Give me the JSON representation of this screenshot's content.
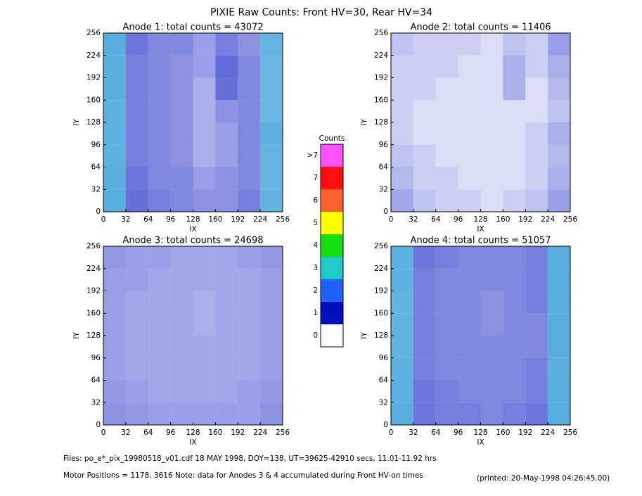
{
  "title": "PIXIE Raw Counts:  Front HV=30, Rear HV=34",
  "colorbar": {
    "title": "Counts",
    "levels": [
      "0",
      "1",
      "2",
      "3",
      "4",
      "5",
      "6",
      "7",
      ">7"
    ],
    "colors": [
      "#ffffff",
      "#0010c0",
      "#2060ff",
      "#20c8c8",
      "#10e010",
      "#ffff00",
      "#ff6030",
      "#ff1010",
      "#ff50ff"
    ]
  },
  "footer": [
    "Files: po_e*_pix_19980518_v01.cdf    18 MAY 1998, DOY=138, UT=39625-42910 secs, 11.01-11.92 hrs",
    "Motor Positions = 1178, 3616    Note: data for Anodes 3 & 4 accumulated during Front HV-on times",
    "(printed: 20-May-1998 04:26:45.00)"
  ],
  "chart_data": [
    {
      "type": "heatmap",
      "title": "Anode 1: total counts = 43072",
      "xlabel": "IX",
      "ylabel": "IY",
      "xlim": [
        0,
        256
      ],
      "ylim": [
        0,
        256
      ],
      "xticks": [
        0,
        32,
        64,
        96,
        128,
        160,
        192,
        224,
        256
      ],
      "yticks": [
        0,
        32,
        64,
        96,
        128,
        160,
        192,
        224,
        256
      ],
      "values": [
        [
          1.6,
          0.8,
          0.6,
          0.6,
          0.4,
          0.7,
          0.5,
          1.2
        ],
        [
          1.5,
          0.7,
          0.6,
          0.5,
          0.4,
          1.0,
          0.6,
          1.1
        ],
        [
          1.5,
          0.7,
          0.6,
          0.5,
          0.3,
          0.9,
          0.6,
          1.1
        ],
        [
          1.4,
          0.7,
          0.6,
          0.5,
          0.3,
          0.5,
          0.6,
          1.1
        ],
        [
          1.4,
          0.7,
          0.6,
          0.5,
          0.3,
          0.4,
          0.6,
          1.4
        ],
        [
          1.4,
          0.7,
          0.6,
          0.5,
          0.3,
          0.4,
          0.6,
          1.2
        ],
        [
          1.5,
          0.8,
          0.6,
          0.6,
          0.4,
          0.5,
          0.6,
          1.2
        ],
        [
          1.6,
          0.9,
          0.7,
          0.6,
          0.5,
          0.5,
          0.7,
          1.3
        ]
      ]
    },
    {
      "type": "heatmap",
      "title": "Anode 2: total counts = 11406",
      "xlabel": "IX",
      "ylabel": "IY",
      "xlim": [
        0,
        256
      ],
      "ylim": [
        0,
        256
      ],
      "xticks": [
        0,
        32,
        64,
        96,
        128,
        160,
        192,
        224,
        256
      ],
      "yticks": [
        0,
        32,
        64,
        96,
        128,
        160,
        192,
        224,
        256
      ],
      "values": [
        [
          0.2,
          0.15,
          0.15,
          0.15,
          0.1,
          0.2,
          0.15,
          0.4
        ],
        [
          0.15,
          0.15,
          0.15,
          0.1,
          0.1,
          0.3,
          0.15,
          0.3
        ],
        [
          0.15,
          0.15,
          0.1,
          0.1,
          0.1,
          0.3,
          0.1,
          0.25
        ],
        [
          0.15,
          0.1,
          0.1,
          0.1,
          0.1,
          0.1,
          0.1,
          0.2
        ],
        [
          0.15,
          0.1,
          0.1,
          0.1,
          0.1,
          0.1,
          0.15,
          0.3
        ],
        [
          0.2,
          0.15,
          0.1,
          0.1,
          0.1,
          0.1,
          0.15,
          0.25
        ],
        [
          0.25,
          0.15,
          0.15,
          0.1,
          0.1,
          0.1,
          0.15,
          0.3
        ],
        [
          0.35,
          0.2,
          0.15,
          0.15,
          0.1,
          0.15,
          0.2,
          0.4
        ]
      ]
    },
    {
      "type": "heatmap",
      "title": "Anode 3: total counts = 24698",
      "xlabel": "IX",
      "ylabel": "IY",
      "xlim": [
        0,
        256
      ],
      "ylim": [
        0,
        256
      ],
      "xticks": [
        0,
        32,
        64,
        96,
        128,
        160,
        192,
        224,
        256
      ],
      "yticks": [
        0,
        32,
        64,
        96,
        128,
        160,
        192,
        224,
        256
      ],
      "values": [
        [
          0.45,
          0.4,
          0.4,
          0.35,
          0.35,
          0.35,
          0.4,
          0.45
        ],
        [
          0.4,
          0.4,
          0.35,
          0.35,
          0.35,
          0.35,
          0.35,
          0.4
        ],
        [
          0.4,
          0.35,
          0.35,
          0.35,
          0.3,
          0.35,
          0.35,
          0.4
        ],
        [
          0.4,
          0.35,
          0.35,
          0.35,
          0.3,
          0.35,
          0.35,
          0.4
        ],
        [
          0.4,
          0.35,
          0.35,
          0.35,
          0.35,
          0.35,
          0.35,
          0.4
        ],
        [
          0.4,
          0.35,
          0.35,
          0.35,
          0.35,
          0.35,
          0.35,
          0.4
        ],
        [
          0.45,
          0.4,
          0.35,
          0.35,
          0.35,
          0.35,
          0.4,
          0.45
        ],
        [
          0.5,
          0.45,
          0.4,
          0.4,
          0.4,
          0.4,
          0.4,
          0.5
        ]
      ]
    },
    {
      "type": "heatmap",
      "title": "Anode 4: total counts = 51057",
      "xlabel": "IX",
      "ylabel": "IY",
      "xlim": [
        0,
        256
      ],
      "ylim": [
        0,
        256
      ],
      "xticks": [
        0,
        32,
        64,
        96,
        128,
        160,
        192,
        224,
        256
      ],
      "yticks": [
        0,
        32,
        64,
        96,
        128,
        160,
        192,
        224,
        256
      ],
      "values": [
        [
          1.4,
          0.8,
          0.7,
          0.6,
          0.6,
          0.6,
          0.7,
          1.6
        ],
        [
          1.4,
          0.7,
          0.6,
          0.6,
          0.6,
          0.6,
          0.7,
          1.7
        ],
        [
          1.3,
          0.7,
          0.6,
          0.6,
          0.5,
          0.6,
          0.7,
          1.6
        ],
        [
          1.3,
          0.7,
          0.6,
          0.6,
          0.5,
          0.6,
          0.6,
          1.5
        ],
        [
          1.3,
          0.7,
          0.6,
          0.6,
          0.6,
          0.6,
          0.6,
          1.5
        ],
        [
          1.4,
          0.7,
          0.6,
          0.6,
          0.6,
          0.6,
          0.7,
          1.5
        ],
        [
          1.4,
          0.8,
          0.7,
          0.6,
          0.6,
          0.6,
          0.7,
          1.6
        ],
        [
          1.5,
          0.8,
          0.7,
          0.7,
          0.6,
          0.7,
          0.8,
          1.7
        ]
      ]
    }
  ]
}
